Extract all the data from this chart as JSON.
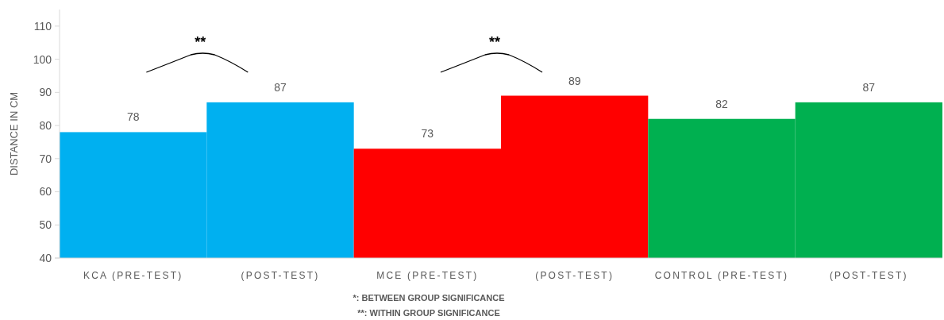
{
  "chart_data": {
    "type": "bar",
    "ylabel": "DISTANCE IN CM",
    "categories": [
      "KCA (PRE-TEST)",
      "(POST-TEST)",
      "MCE (PRE-TEST)",
      "(POST-TEST)",
      "CONTROL (PRE-TEST)",
      "(POST-TEST)"
    ],
    "values": [
      78,
      87,
      73,
      89,
      82,
      87
    ],
    "colors": [
      "#00b0f0",
      "#00b0f0",
      "#ff0000",
      "#ff0000",
      "#00b050",
      "#00b050"
    ],
    "data_labels": true,
    "ylim": [
      40,
      115
    ],
    "yticks": [
      40,
      50,
      60,
      70,
      80,
      90,
      100,
      110
    ],
    "grid": false,
    "annotations": [
      "**",
      "**",
      "*: BETWEEN GROUP SIGNIFICANCE",
      "**: WITHIN GROUP SIGNIFICANCE"
    ]
  }
}
